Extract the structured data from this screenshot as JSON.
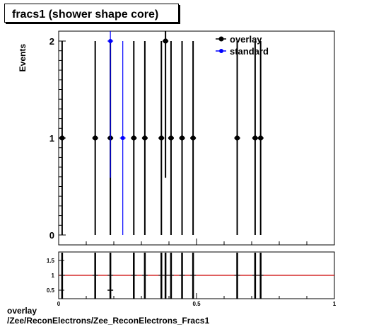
{
  "title": "fracs1 (shower shape core)",
  "footer": {
    "line1": "overlay",
    "line2": "/Zee/ReconElectrons/Zee_ReconElectrons_Fracs1"
  },
  "colors": {
    "overlay": "#000000",
    "standard": "#0000ff",
    "ratio_line": "#cc0000"
  },
  "chart_data": [
    {
      "type": "scatter",
      "ylabel": "Events",
      "ylim": [
        0,
        2.1
      ],
      "xlim": [
        0,
        1
      ],
      "yticks": [
        "0",
        "1",
        "2"
      ],
      "legend": {
        "placement": "top-right",
        "entries": [
          "overlay",
          "standard"
        ]
      },
      "series": [
        {
          "name": "overlay",
          "x": [
            0.0125,
            0.1325,
            0.1875,
            0.2725,
            0.3125,
            0.3725,
            0.3875,
            0.4075,
            0.4475,
            0.4875,
            0.6475,
            0.7125,
            0.7325
          ],
          "y": [
            1,
            1,
            1,
            1,
            1,
            1,
            2,
            1,
            1,
            1,
            1,
            1,
            1
          ]
        },
        {
          "name": "standard",
          "x": [
            0.1875,
            0.2325
          ],
          "y": [
            2,
            1
          ]
        }
      ]
    },
    {
      "type": "scatter",
      "ylim": [
        0.3,
        1.75
      ],
      "xlim": [
        0,
        1
      ],
      "yticks": [
        "0.5",
        "1",
        "1.5"
      ],
      "xticks": [
        "0",
        "0.5",
        "1"
      ],
      "reference_line": 1,
      "points": {
        "x": [
          0.1875
        ],
        "y": [
          0.5
        ]
      }
    }
  ]
}
